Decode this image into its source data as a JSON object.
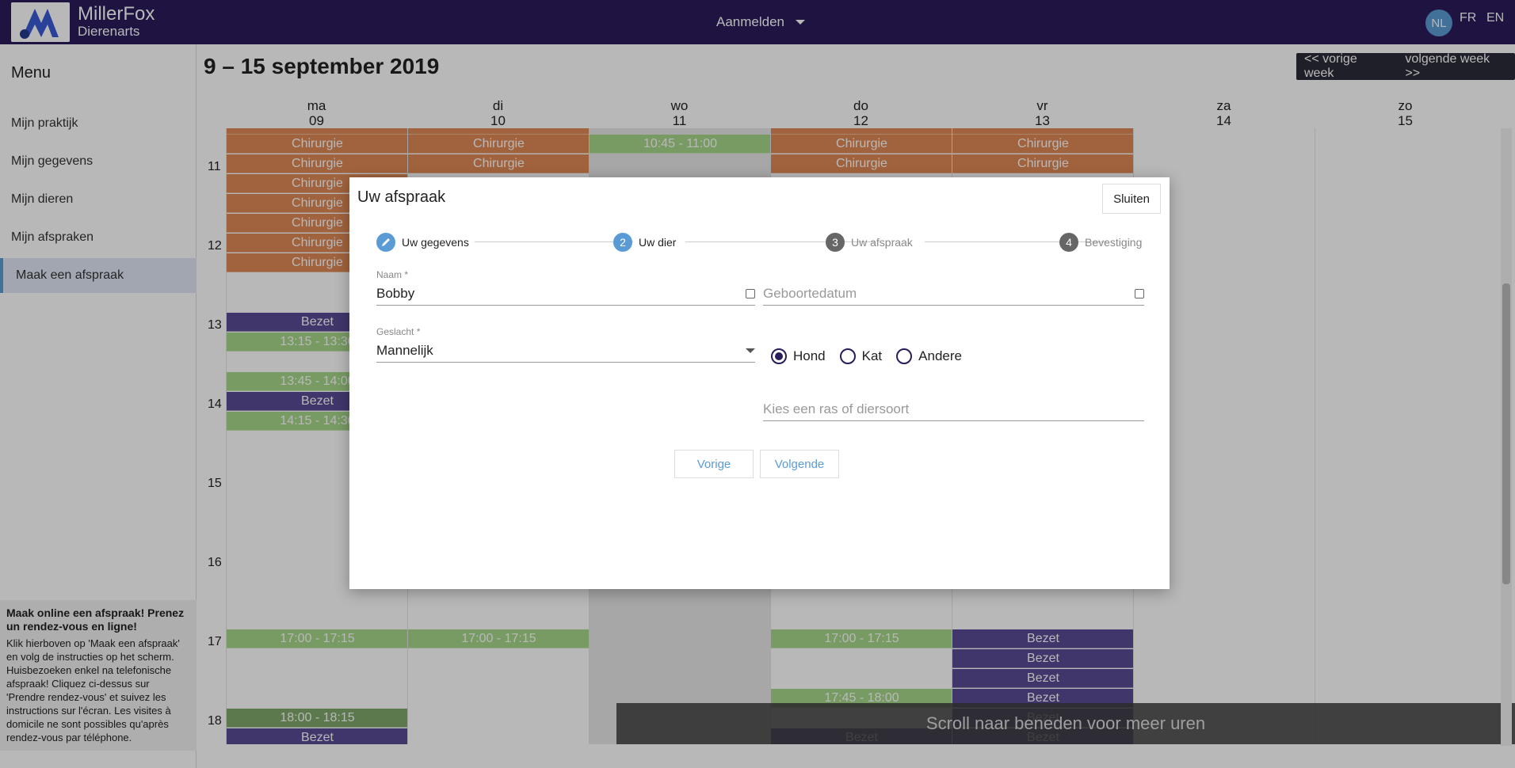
{
  "brand": {
    "name": "MillerFox",
    "subtitle": "Dierenarts"
  },
  "header": {
    "login_label": "Aanmelden",
    "languages": [
      "NL",
      "FR",
      "EN"
    ],
    "active_language": "NL"
  },
  "sidebar": {
    "title": "Menu",
    "items": [
      {
        "label": "Mijn praktijk"
      },
      {
        "label": "Mijn gegevens"
      },
      {
        "label": "Mijn dieren"
      },
      {
        "label": "Mijn afspraken"
      },
      {
        "label": "Maak een afspraak",
        "active": true
      }
    ],
    "info_title": "Maak online een afspraak! Prenez un rendez-vous en ligne!",
    "info_text": "Klik hierboven op 'Maak een afspraak' en volg de instructies op het scherm. Huisbezoeken enkel na telefonische afspraak! Cliquez ci-dessus sur 'Prendre rendez-vous' et suivez les instructions sur l'écran. Les visites à domicile ne sont possibles qu'après rendez-vous par téléphone."
  },
  "calendar": {
    "period": "9 – 15 september 2019",
    "prev_label": "<< vorige week",
    "next_label": "volgende week >>",
    "days": [
      {
        "name": "ma",
        "num": "09"
      },
      {
        "name": "di",
        "num": "10"
      },
      {
        "name": "wo",
        "num": "11"
      },
      {
        "name": "do",
        "num": "12"
      },
      {
        "name": "vr",
        "num": "13"
      },
      {
        "name": "za",
        "num": "14"
      },
      {
        "name": "zo",
        "num": "15"
      }
    ],
    "hours": [
      "11",
      "12",
      "13",
      "14",
      "15",
      "16",
      "17",
      "18"
    ],
    "events": {
      "chirurgie": "Chirurgie",
      "bezet": "Bezet",
      "e1045": "10:45 - 11:00",
      "e1315": "13:15 - 13:30",
      "e1345": "13:45 - 14:00",
      "e1415": "14:15 - 14:30",
      "e1700": "17:00 - 17:15",
      "e1745": "17:45 - 18:00",
      "e1800": "18:00 - 18:15"
    },
    "scroll_hint": "Scroll naar beneden voor meer uren"
  },
  "modal": {
    "title": "Uw afspraak",
    "close_label": "Sluiten",
    "steps": [
      {
        "num": "",
        "label": "Uw gegevens"
      },
      {
        "num": "2",
        "label": "Uw dier"
      },
      {
        "num": "3",
        "label": "Uw afspraak"
      },
      {
        "num": "4",
        "label": "Bevestiging"
      }
    ],
    "name": {
      "label": "Naam *",
      "value": "Bobby"
    },
    "birthdate": {
      "placeholder": "Geboortedatum"
    },
    "gender": {
      "label": "Geslacht *",
      "value": "Mannelijk"
    },
    "species": {
      "options": [
        "Hond",
        "Kat",
        "Andere"
      ],
      "selected": "Hond"
    },
    "breed": {
      "placeholder": "Kies een ras of diersoort"
    },
    "prev_label": "Vorige",
    "next_label": "Volgende"
  }
}
